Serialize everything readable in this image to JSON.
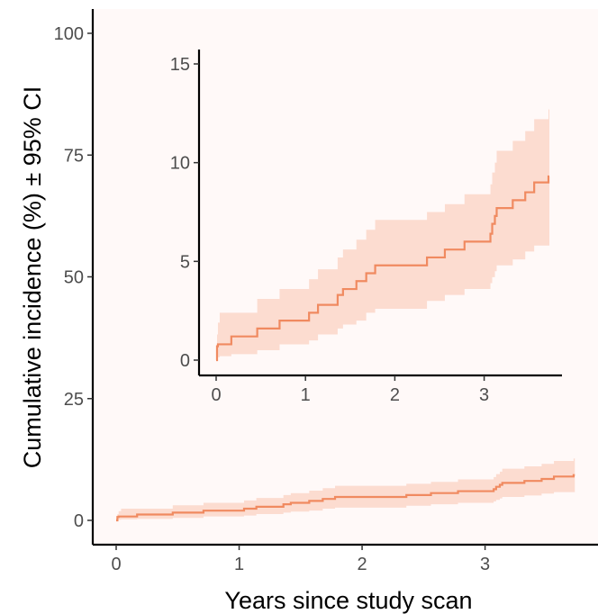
{
  "chart_data": [
    {
      "type": "line",
      "name": "main",
      "xlabel": "Years since study scan",
      "ylabel": "Cumulative incidence (%) ± 95% CI",
      "xlim": [
        0,
        3.75
      ],
      "ylim": [
        0,
        100
      ],
      "x_ticks": [
        0,
        1,
        2,
        3
      ],
      "y_ticks": [
        0,
        25,
        50,
        75,
        100
      ],
      "grid": false,
      "colors": {
        "line": "#F08A60",
        "band": "#FCDCD0",
        "background": "#FFF9F8"
      },
      "series": [
        {
          "step": true,
          "points": [
            {
              "x": 0.0,
              "y": 0.0,
              "lo": 0.0,
              "hi": 0.4
            },
            {
              "x": 0.01,
              "y": 0.7,
              "lo": 0.1,
              "hi": 1.3
            },
            {
              "x": 0.02,
              "y": 0.8,
              "lo": 0.15,
              "hi": 1.9
            },
            {
              "x": 0.04,
              "y": 0.8,
              "lo": 0.2,
              "hi": 2.4
            },
            {
              "x": 0.17,
              "y": 1.2,
              "lo": 0.3,
              "hi": 2.4
            },
            {
              "x": 0.46,
              "y": 1.6,
              "lo": 0.5,
              "hi": 3.1
            },
            {
              "x": 0.71,
              "y": 2.0,
              "lo": 0.8,
              "hi": 3.6
            },
            {
              "x": 1.04,
              "y": 2.4,
              "lo": 1.0,
              "hi": 4.1
            },
            {
              "x": 1.14,
              "y": 2.8,
              "lo": 1.3,
              "hi": 4.6
            },
            {
              "x": 1.36,
              "y": 3.3,
              "lo": 1.6,
              "hi": 5.2
            },
            {
              "x": 1.42,
              "y": 3.6,
              "lo": 1.8,
              "hi": 5.6
            },
            {
              "x": 1.57,
              "y": 4.0,
              "lo": 2.0,
              "hi": 6.1
            },
            {
              "x": 1.68,
              "y": 4.4,
              "lo": 2.4,
              "hi": 6.6
            },
            {
              "x": 1.78,
              "y": 4.8,
              "lo": 2.6,
              "hi": 7.1
            },
            {
              "x": 2.36,
              "y": 5.2,
              "lo": 3.0,
              "hi": 7.5
            },
            {
              "x": 2.56,
              "y": 5.6,
              "lo": 3.3,
              "hi": 7.9
            },
            {
              "x": 2.78,
              "y": 6.0,
              "lo": 3.6,
              "hi": 8.4
            },
            {
              "x": 3.07,
              "y": 6.4,
              "lo": 3.9,
              "hi": 8.9
            },
            {
              "x": 3.09,
              "y": 6.9,
              "lo": 4.2,
              "hi": 9.5
            },
            {
              "x": 3.12,
              "y": 7.3,
              "lo": 4.5,
              "hi": 10.0
            },
            {
              "x": 3.14,
              "y": 7.7,
              "lo": 4.8,
              "hi": 10.6
            },
            {
              "x": 3.32,
              "y": 8.1,
              "lo": 5.1,
              "hi": 11.1
            },
            {
              "x": 3.46,
              "y": 8.5,
              "lo": 5.5,
              "hi": 11.6
            },
            {
              "x": 3.56,
              "y": 9.0,
              "lo": 5.8,
              "hi": 12.2
            },
            {
              "x": 3.72,
              "y": 9.3,
              "lo": 5.8,
              "hi": 12.7
            }
          ],
          "x_end": 3.73
        }
      ]
    },
    {
      "type": "line",
      "name": "inset",
      "xlabel": "",
      "ylabel": "",
      "xlim": [
        0,
        3.75
      ],
      "ylim": [
        0,
        15
      ],
      "x_ticks": [
        0,
        1,
        2,
        3
      ],
      "y_ticks": [
        0,
        5,
        10,
        15
      ],
      "grid": false,
      "note_same_series_as": "main"
    }
  ]
}
